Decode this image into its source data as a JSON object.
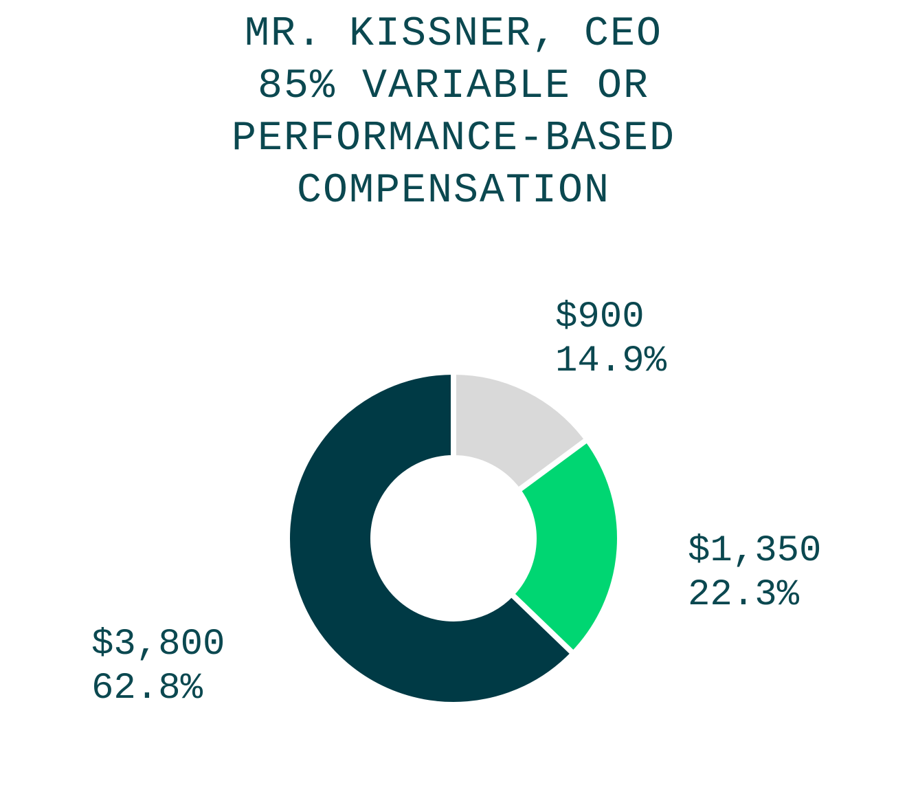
{
  "chart_data": {
    "type": "donut",
    "title": [
      "MR. KISSNER, CEO",
      "85%  VARIABLE OR",
      "PERFORMANCE-BASED",
      "COMPENSATION"
    ],
    "values": [
      900,
      1350,
      3800
    ],
    "value_labels": [
      "$900",
      "$1,350",
      "$3,800"
    ],
    "shares": [
      14.9,
      22.3,
      62.8
    ],
    "share_labels": [
      "14.9%",
      "22.3%",
      "62.8%"
    ],
    "colors": [
      "#d9d9d9",
      "#00d672",
      "#003a45"
    ]
  }
}
